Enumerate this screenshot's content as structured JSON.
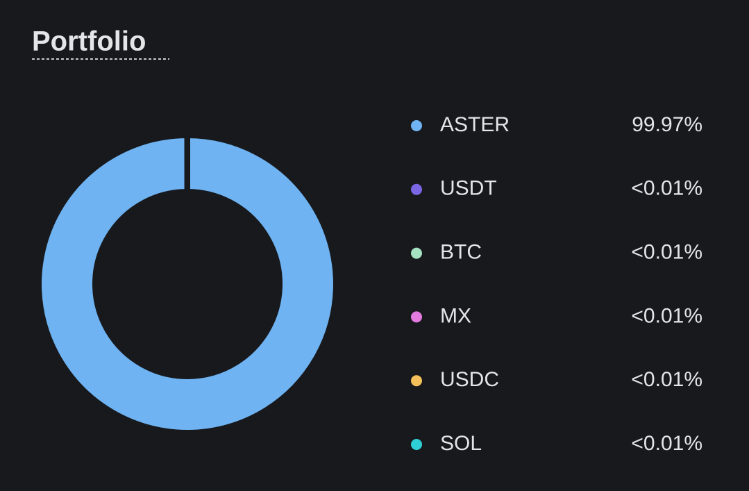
{
  "chart_data": {
    "type": "pie",
    "title": "Portfolio",
    "categories": [
      "ASTER",
      "USDT",
      "BTC",
      "MX",
      "USDC",
      "SOL"
    ],
    "values": [
      99.97,
      0.005,
      0.005,
      0.005,
      0.005,
      0.005
    ],
    "value_labels": [
      "99.97%",
      "<0.01%",
      "<0.01%",
      "<0.01%",
      "<0.01%",
      "<0.01%"
    ],
    "colors": [
      "#6fb3f2",
      "#7b66e3",
      "#a5e2c2",
      "#e27ae0",
      "#f3c05a",
      "#2ecfd6"
    ]
  }
}
